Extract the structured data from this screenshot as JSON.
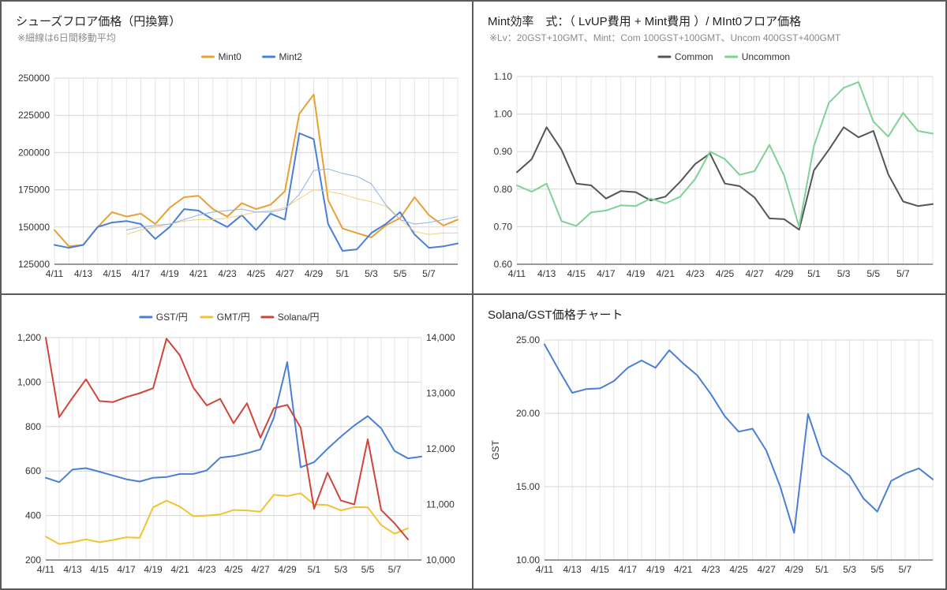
{
  "charts": [
    {
      "type": "line",
      "title": "シューズフロア価格（円換算）",
      "subtitle": "※細線は6日間移動平均",
      "x_ticks": [
        "4/11",
        "4/13",
        "4/15",
        "4/17",
        "4/19",
        "4/21",
        "4/23",
        "4/25",
        "4/27",
        "4/29",
        "5/1",
        "5/3",
        "5/5",
        "5/7"
      ],
      "y_ticks": [
        "125000",
        "150000",
        "175000",
        "200000",
        "225000",
        "250000"
      ],
      "ylim": [
        125000,
        250000
      ],
      "legend": "top",
      "grid": true,
      "series": [
        {
          "name": "Mint0",
          "color": "#e8a033",
          "width": 2,
          "legend": true,
          "values": [
            148000,
            137000,
            138000,
            150000,
            160000,
            157000,
            159000,
            152000,
            163000,
            170000,
            171000,
            162000,
            157000,
            166000,
            162000,
            165000,
            174000,
            226000,
            239000,
            168000,
            149000,
            146000,
            143000,
            151000,
            156000,
            170000,
            158000,
            151000,
            155000
          ]
        },
        {
          "name": "Mint2",
          "color": "#4a7fd6",
          "width": 2,
          "legend": true,
          "values": [
            138000,
            136000,
            138000,
            150000,
            153000,
            154000,
            152000,
            142000,
            150000,
            162000,
            161000,
            155000,
            150000,
            158000,
            148000,
            159000,
            155000,
            213000,
            209000,
            152000,
            134000,
            135000,
            146000,
            152000,
            160000,
            145000,
            136000,
            137000,
            139000
          ]
        },
        {
          "name": "",
          "color": "#f0d07a",
          "width": 1,
          "legend": false,
          "values": [
            null,
            null,
            null,
            null,
            null,
            145000,
            148000,
            150000,
            152000,
            154000,
            155000,
            155000,
            156000,
            158000,
            160000,
            161000,
            163000,
            169000,
            175000,
            174000,
            172000,
            169000,
            167000,
            164000,
            155000,
            147000,
            145000,
            146000,
            146000
          ]
        },
        {
          "name": "",
          "color": "#8fb1ea",
          "width": 1,
          "legend": false,
          "values": [
            null,
            null,
            null,
            null,
            null,
            148000,
            150000,
            151000,
            152000,
            155000,
            158000,
            160000,
            161000,
            162000,
            160000,
            160000,
            162000,
            172000,
            188000,
            189000,
            186000,
            184000,
            179000,
            165000,
            155000,
            152000,
            153000,
            155000,
            157000
          ]
        }
      ]
    },
    {
      "type": "line",
      "title": "Mint効率　式：（ LvUP費用 + Mint費用 ）/ MInt0フロア価格",
      "subtitle": "※Lv：20GST+10GMT、Mint：Com 100GST+100GMT、Uncom 400GST+400GMT",
      "x_ticks": [
        "4/11",
        "4/13",
        "4/15",
        "4/17",
        "4/19",
        "4/21",
        "4/23",
        "4/25",
        "4/27",
        "4/29",
        "5/1",
        "5/3",
        "5/5",
        "5/7"
      ],
      "y_ticks": [
        "0.60",
        "0.70",
        "0.80",
        "0.90",
        "1.00",
        "1.10"
      ],
      "ylim": [
        0.6,
        1.1
      ],
      "legend": "top",
      "grid": true,
      "series": [
        {
          "name": "Common",
          "color": "#555555",
          "width": 2,
          "legend": true,
          "values": [
            0.845,
            0.88,
            0.965,
            0.905,
            0.815,
            0.81,
            0.775,
            0.795,
            0.792,
            0.77,
            0.78,
            0.82,
            0.867,
            0.895,
            0.815,
            0.808,
            0.778,
            0.722,
            0.72,
            0.692,
            0.85,
            0.905,
            0.965,
            0.938,
            0.955,
            0.84,
            0.767,
            0.755,
            0.76
          ]
        },
        {
          "name": "Uncommon",
          "color": "#7fd197",
          "width": 2,
          "legend": true,
          "values": [
            0.81,
            0.793,
            0.815,
            0.715,
            0.702,
            0.738,
            0.743,
            0.757,
            0.755,
            0.775,
            0.762,
            0.78,
            0.827,
            0.9,
            0.88,
            0.838,
            0.848,
            0.918,
            0.835,
            0.7,
            0.915,
            1.03,
            1.07,
            1.085,
            0.98,
            0.94,
            1.003,
            0.955,
            0.948
          ]
        }
      ]
    },
    {
      "type": "line",
      "title": "",
      "subtitle": "",
      "x_ticks": [
        "4/11",
        "4/13",
        "4/15",
        "4/17",
        "4/19",
        "4/21",
        "4/23",
        "4/25",
        "4/27",
        "4/29",
        "5/1",
        "5/3",
        "5/5",
        "5/7"
      ],
      "y_ticks": [
        "200",
        "400",
        "600",
        "800",
        "1,000",
        "1,200"
      ],
      "y2_ticks": [
        "10,000",
        "11,000",
        "12,000",
        "13,000",
        "14,000"
      ],
      "ylim": [
        200,
        1200
      ],
      "y2lim": [
        10000,
        14000
      ],
      "legend": "top",
      "grid": true,
      "series": [
        {
          "name": "GST/円",
          "color": "#4a7fd6",
          "width": 2,
          "legend": true,
          "axis": "left",
          "values": [
            570,
            550,
            607,
            613,
            597,
            580,
            563,
            553,
            570,
            573,
            587,
            587,
            603,
            660,
            667,
            680,
            697,
            840,
            1090,
            617,
            640,
            700,
            755,
            805,
            847,
            792,
            690,
            657,
            665
          ]
        },
        {
          "name": "GMT/円",
          "color": "#f2c230",
          "width": 2,
          "legend": true,
          "axis": "left",
          "values": [
            305,
            272,
            280,
            293,
            280,
            290,
            302,
            300,
            437,
            467,
            440,
            397,
            400,
            405,
            425,
            423,
            417,
            493,
            488,
            500,
            450,
            447,
            423,
            438,
            437,
            357,
            318,
            343,
            null
          ]
        },
        {
          "name": "Solana/円",
          "color": "#d0443a",
          "width": 2,
          "legend": true,
          "axis": "right",
          "values": [
            14000,
            12570,
            12920,
            13250,
            12860,
            12840,
            12930,
            13000,
            13090,
            13980,
            13680,
            13100,
            12780,
            12900,
            12460,
            12820,
            12200,
            12730,
            12790,
            12380,
            10920,
            11570,
            11070,
            11000,
            12170,
            10900,
            10660,
            10370,
            null
          ]
        }
      ]
    },
    {
      "type": "line",
      "title": "Solana/GST価格チャート",
      "subtitle": "",
      "x_ticks": [
        "4/11",
        "4/13",
        "4/15",
        "4/17",
        "4/19",
        "4/21",
        "4/23",
        "4/25",
        "4/27",
        "4/29",
        "5/1",
        "5/3",
        "5/5",
        "5/7"
      ],
      "y_ticks": [
        "10.00",
        "15.00",
        "20.00",
        "25.00"
      ],
      "ylim": [
        10,
        25
      ],
      "ylabel": "GST",
      "legend": "none",
      "grid": true,
      "series": [
        {
          "name": "",
          "color": "#4a7fd6",
          "width": 2,
          "legend": false,
          "values": [
            24.7,
            23.0,
            21.4,
            21.65,
            21.7,
            22.2,
            23.1,
            23.6,
            23.1,
            24.3,
            23.4,
            22.6,
            21.3,
            19.8,
            18.75,
            18.95,
            17.45,
            15.0,
            11.85,
            19.95,
            17.15,
            16.45,
            15.75,
            14.2,
            13.3,
            15.4,
            15.9,
            16.25,
            15.5
          ]
        }
      ]
    }
  ]
}
